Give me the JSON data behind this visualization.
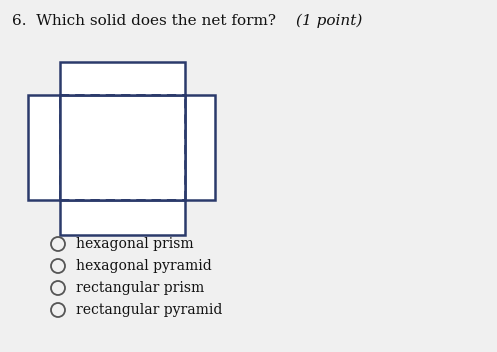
{
  "title_normal": "6.  Which solid does the net form?  ",
  "title_italic": "(1 point)",
  "bg_color": "#f0f0f0",
  "options": [
    "hexagonal prism",
    "hexagonal pyramid",
    "rectangular prism",
    "rectangular pyramid"
  ],
  "line_color": "#2b3a6b",
  "dash_color": "#2b3a6b",
  "net_bg": "#ffffff"
}
